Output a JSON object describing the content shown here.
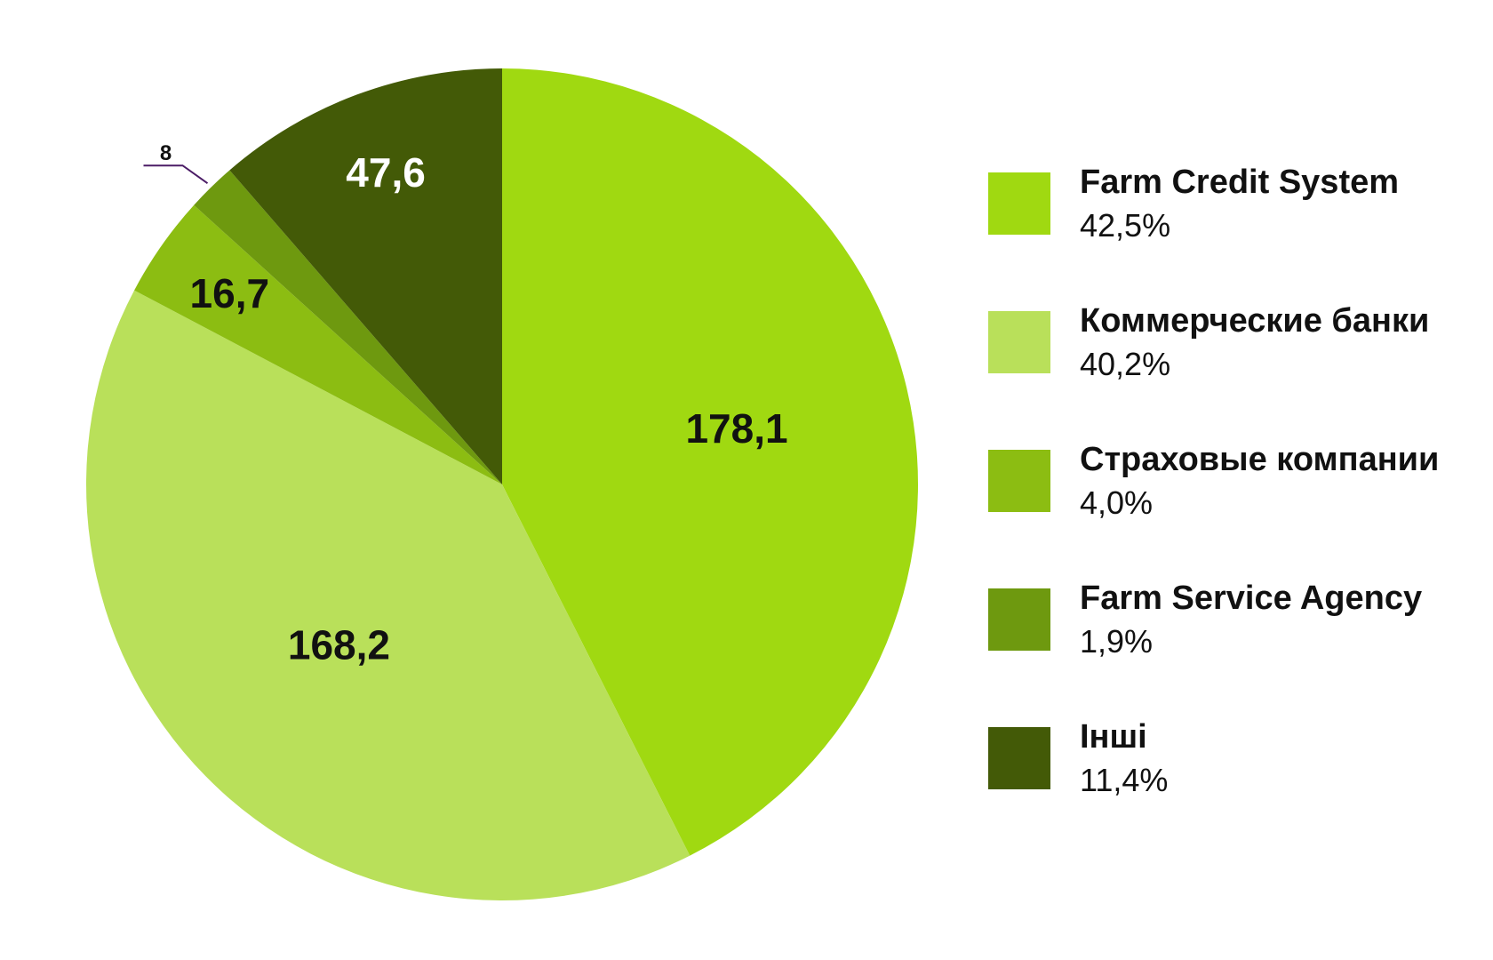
{
  "chart_data": {
    "type": "pie",
    "title": "",
    "slices": [
      {
        "name": "Farm Credit System",
        "value": 178.1,
        "value_label": "178,1",
        "percent_label": "42,5%",
        "color": "#a0d911",
        "label_color": "#111111"
      },
      {
        "name": "Коммерческие банки",
        "value": 168.2,
        "value_label": "168,2",
        "percent_label": "40,2%",
        "color": "#b9e05a",
        "label_color": "#111111"
      },
      {
        "name": "Страховые компании",
        "value": 16.7,
        "value_label": "16,7",
        "percent_label": "4,0%",
        "color": "#8cbd12",
        "label_color": "#111111"
      },
      {
        "name": "Farm Service Agency",
        "value": 8,
        "value_label": "8",
        "percent_label": "1,9%",
        "color": "#6e990f",
        "label_color": "#111111",
        "callout": true
      },
      {
        "name": "Інші",
        "value": 47.6,
        "value_label": "47,6",
        "percent_label": "11,4%",
        "color": "#435a07",
        "label_color": "#ffffff"
      }
    ],
    "legend_position": "right",
    "start": "top",
    "direction": "clockwise"
  }
}
